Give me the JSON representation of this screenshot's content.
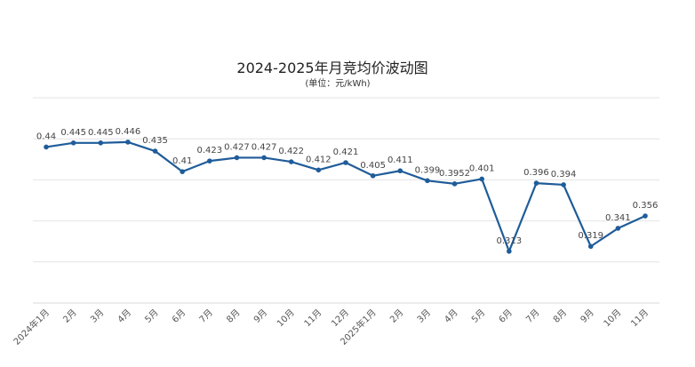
{
  "chart_data": {
    "type": "line",
    "title": "2024-2025年月竞均价波动图",
    "subtitle": "(单位：元/kWh)",
    "xlabel": "",
    "ylabel": "",
    "ylim": [
      0.25,
      0.5
    ],
    "grid": true,
    "y_gridlines": [
      0.25,
      0.3,
      0.35,
      0.4,
      0.45,
      0.5
    ],
    "categories": [
      "2024年1月",
      "2月",
      "3月",
      "4月",
      "5月",
      "6月",
      "7月",
      "8月",
      "9月",
      "10月",
      "11月",
      "12月",
      "2025年1月",
      "2月",
      "3月",
      "4月",
      "5月",
      "6月",
      "7月",
      "8月",
      "9月",
      "10月",
      "11月"
    ],
    "series": [
      {
        "name": "月竞均价",
        "color": "#1f5c99",
        "values": [
          0.44,
          0.445,
          0.445,
          0.446,
          0.435,
          0.41,
          0.423,
          0.427,
          0.427,
          0.422,
          0.412,
          0.421,
          0.405,
          0.411,
          0.399,
          0.3952,
          0.401,
          0.313,
          0.396,
          0.394,
          0.319,
          0.341,
          0.356
        ],
        "labels": [
          "0.44",
          "0.445",
          "0.445",
          "0.446",
          "0.435",
          "0.41",
          "0.423",
          "0.427",
          "0.427",
          "0.422",
          "0.412",
          "0.421",
          "0.405",
          "0.411",
          "0.399",
          "0.3952",
          "0.401",
          "0.313",
          "0.396",
          "0.394",
          "0.319",
          "0.341",
          "0.356"
        ]
      }
    ]
  }
}
